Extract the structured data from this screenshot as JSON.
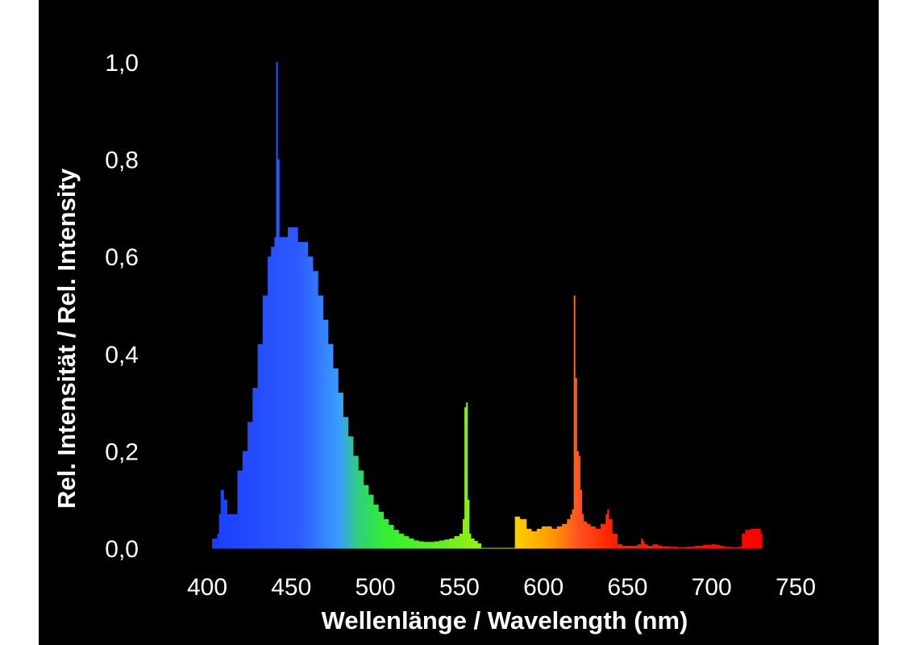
{
  "chart_data": {
    "type": "area",
    "title": "",
    "xlabel": "Wellenlänge / Wavelength (nm)",
    "ylabel": "Rel. Intensität / Rel. Intensity",
    "xlim": [
      400,
      750
    ],
    "ylim": [
      0,
      1.0
    ],
    "x_ticks": [
      "400",
      "450",
      "500",
      "550",
      "600",
      "650",
      "700",
      "750"
    ],
    "y_ticks": [
      "0,0",
      "0,2",
      "0,4",
      "0,6",
      "0,8",
      "1,0"
    ],
    "grid": false,
    "background": "#000000",
    "spectrum": {
      "x": [
        403,
        406,
        407,
        408,
        410,
        412,
        415,
        418,
        421,
        424,
        427,
        430,
        433,
        436,
        438,
        440,
        441,
        442,
        443,
        445,
        448,
        451,
        454,
        457,
        460,
        463,
        466,
        469,
        472,
        475,
        478,
        481,
        484,
        487,
        490,
        493,
        496,
        499,
        502,
        505,
        508,
        511,
        514,
        517,
        520,
        523,
        526,
        529,
        532,
        535,
        538,
        541,
        544,
        547,
        550,
        552,
        553,
        554,
        555,
        556,
        557,
        558,
        559,
        561,
        563,
        565,
        575,
        583,
        586,
        590,
        593,
        596,
        599,
        602,
        605,
        608,
        611,
        614,
        616,
        617,
        618,
        619,
        620,
        621,
        622,
        623,
        624,
        626,
        628,
        631,
        634,
        637,
        638,
        639,
        641,
        644,
        647,
        650,
        653,
        656,
        658,
        659,
        660,
        662,
        665,
        668,
        670,
        675,
        680,
        685,
        690,
        695,
        700,
        703,
        705,
        708,
        712,
        716,
        718,
        720,
        723,
        726,
        729,
        730
      ],
      "y": [
        0.02,
        0.03,
        0.07,
        0.12,
        0.1,
        0.07,
        0.07,
        0.16,
        0.2,
        0.26,
        0.33,
        0.42,
        0.52,
        0.6,
        0.62,
        0.64,
        1.0,
        0.8,
        0.64,
        0.64,
        0.66,
        0.66,
        0.63,
        0.63,
        0.6,
        0.57,
        0.52,
        0.47,
        0.42,
        0.37,
        0.32,
        0.27,
        0.23,
        0.19,
        0.16,
        0.13,
        0.11,
        0.09,
        0.075,
        0.06,
        0.048,
        0.038,
        0.03,
        0.025,
        0.02,
        0.016,
        0.014,
        0.013,
        0.013,
        0.014,
        0.016,
        0.018,
        0.02,
        0.025,
        0.03,
        0.06,
        0.29,
        0.3,
        0.1,
        0.03,
        0.02,
        0.02,
        0.015,
        0.01,
        0.0,
        0.0,
        0.0,
        0.065,
        0.06,
        0.04,
        0.035,
        0.04,
        0.045,
        0.045,
        0.04,
        0.045,
        0.05,
        0.06,
        0.07,
        0.08,
        0.52,
        0.35,
        0.2,
        0.19,
        0.12,
        0.07,
        0.055,
        0.05,
        0.045,
        0.04,
        0.05,
        0.07,
        0.08,
        0.06,
        0.03,
        0.008,
        0.005,
        0.005,
        0.005,
        0.008,
        0.02,
        0.015,
        0.008,
        0.005,
        0.008,
        0.006,
        0.004,
        0.003,
        0.002,
        0.003,
        0.005,
        0.007,
        0.008,
        0.007,
        0.005,
        0.003,
        0.002,
        0.003,
        0.03,
        0.038,
        0.04,
        0.04,
        0.03,
        0.0
      ]
    },
    "color_scale": [
      {
        "nm": 400,
        "color": "#1a3cff"
      },
      {
        "nm": 455,
        "color": "#2d5bff"
      },
      {
        "nm": 478,
        "color": "#3a9cff"
      },
      {
        "nm": 490,
        "color": "#2fd07a"
      },
      {
        "nm": 505,
        "color": "#33ee33"
      },
      {
        "nm": 540,
        "color": "#66ee22"
      },
      {
        "nm": 560,
        "color": "#99ee11"
      },
      {
        "nm": 585,
        "color": "#ffcc00"
      },
      {
        "nm": 605,
        "color": "#ff9900"
      },
      {
        "nm": 620,
        "color": "#ff5522"
      },
      {
        "nm": 640,
        "color": "#ff2200"
      },
      {
        "nm": 730,
        "color": "#ff0000"
      }
    ]
  }
}
